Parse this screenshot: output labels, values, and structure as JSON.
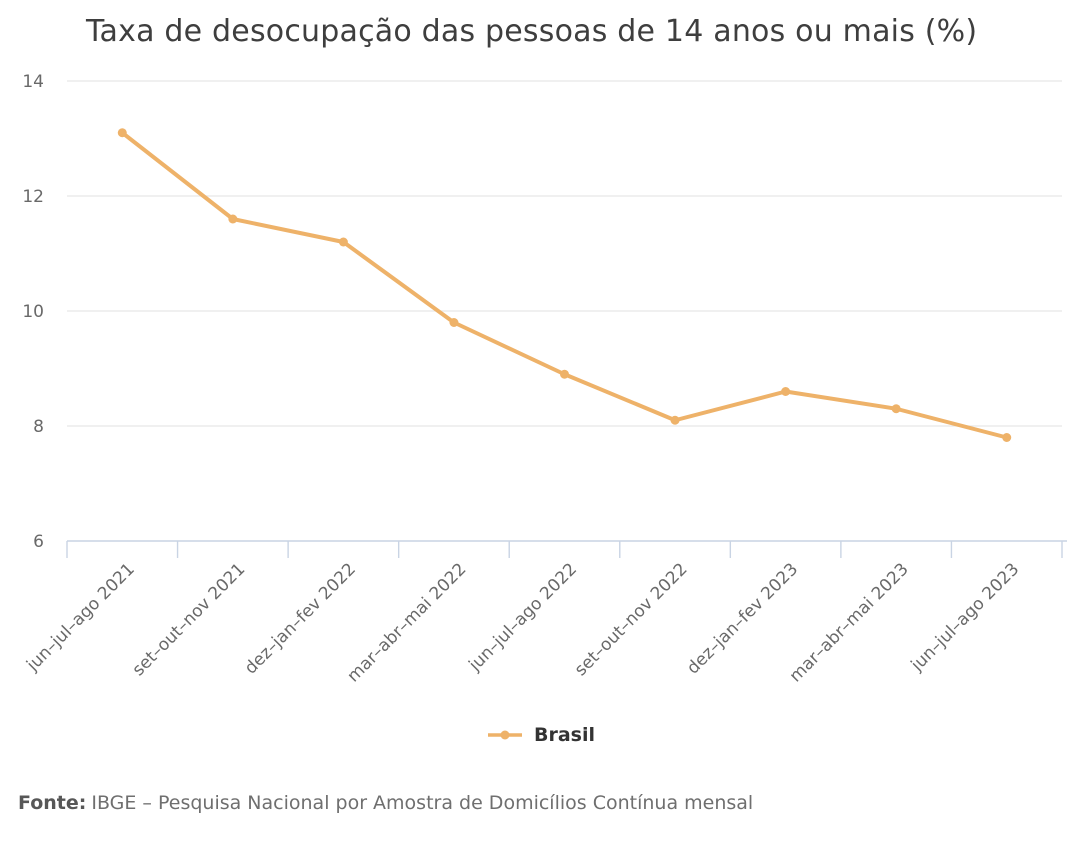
{
  "chart_data": {
    "type": "line",
    "title": "Taxa de desocupação das pessoas de 14 anos ou mais (%)",
    "categories": [
      "jun–jul–ago 2021",
      "set–out–nov 2021",
      "dez–jan–fev 2022",
      "mar–abr–mai 2022",
      "jun–jul–ago 2022",
      "set–out–nov 2022",
      "dez–jan–fev 2023",
      "mar–abr–mai 2023",
      "jun–jul–ago 2023"
    ],
    "series": [
      {
        "name": "Brasil",
        "values": [
          13.1,
          11.6,
          11.2,
          9.8,
          8.9,
          8.1,
          8.6,
          8.3,
          7.8
        ],
        "color": "#eeb269"
      }
    ],
    "xlabel": "",
    "ylabel": "",
    "ylim": [
      6,
      14
    ],
    "yticks": [
      6,
      8,
      10,
      12,
      14
    ],
    "grid": true,
    "legend_position": "bottom"
  },
  "footer": {
    "source_label": "Fonte:",
    "source_text": "IBGE – Pesquisa Nacional por Amostra de Domicílios Contínua mensal"
  },
  "colors": {
    "accent": "#eeb269",
    "grid": "#e6e6e6",
    "axis": "#c9d4e4",
    "title_text": "#3e3e3e",
    "tick_text": "#696969",
    "legend_text": "#333333",
    "footer_text": "#6f6f6f"
  }
}
